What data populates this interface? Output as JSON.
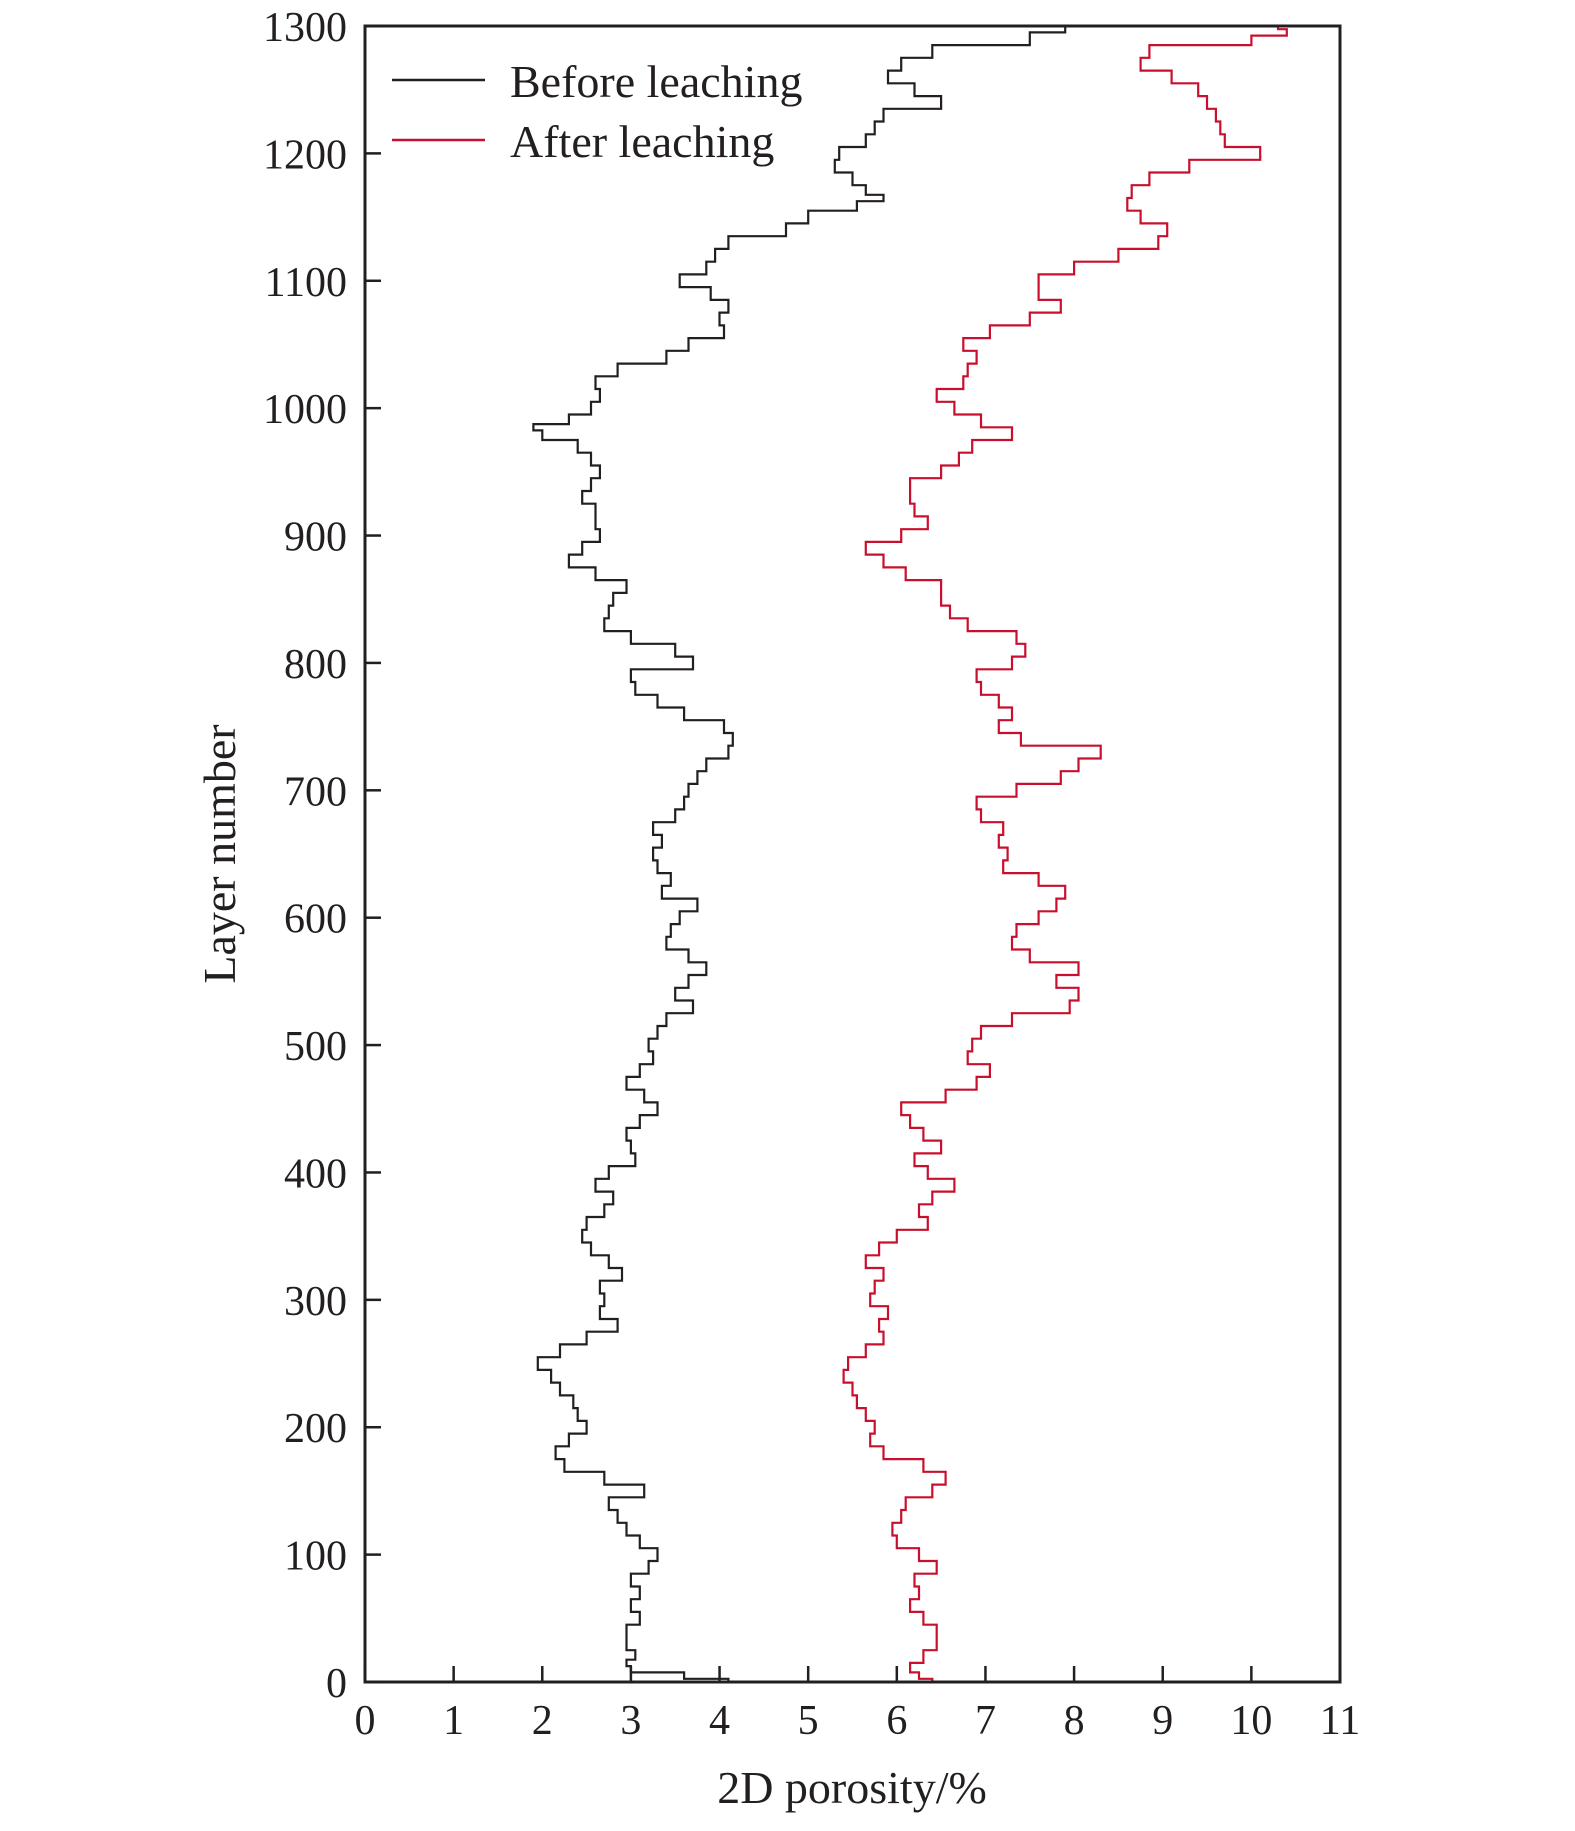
{
  "chart_data": {
    "type": "line",
    "title": "",
    "xlabel": "2D porosity/%",
    "ylabel": "Layer number",
    "xlim": [
      0,
      11
    ],
    "ylim": [
      0,
      1300
    ],
    "x_ticks": [
      "0",
      "1",
      "2",
      "3",
      "4",
      "5",
      "6",
      "7",
      "8",
      "9",
      "10",
      "11"
    ],
    "y_ticks": [
      "0",
      "100",
      "200",
      "300",
      "400",
      "500",
      "600",
      "700",
      "800",
      "900",
      "1000",
      "1100",
      "1200",
      "1300"
    ],
    "grid": false,
    "legend_position": "top-left",
    "series": [
      {
        "name": "Before leaching",
        "color": "#231f20",
        "layer": [
          0,
          5,
          10,
          15,
          20,
          30,
          40,
          50,
          60,
          70,
          80,
          90,
          100,
          110,
          120,
          130,
          140,
          150,
          160,
          170,
          180,
          190,
          200,
          210,
          220,
          230,
          240,
          250,
          260,
          270,
          280,
          290,
          300,
          310,
          320,
          330,
          340,
          350,
          360,
          370,
          380,
          390,
          400,
          410,
          420,
          430,
          440,
          450,
          460,
          470,
          480,
          490,
          500,
          510,
          520,
          530,
          540,
          550,
          560,
          570,
          580,
          590,
          600,
          610,
          620,
          630,
          640,
          650,
          660,
          670,
          680,
          690,
          700,
          710,
          720,
          730,
          740,
          750,
          760,
          770,
          780,
          790,
          800,
          810,
          820,
          830,
          840,
          850,
          860,
          870,
          880,
          890,
          900,
          910,
          920,
          930,
          940,
          950,
          960,
          970,
          980,
          985,
          990,
          1000,
          1010,
          1020,
          1030,
          1040,
          1050,
          1060,
          1070,
          1080,
          1090,
          1100,
          1110,
          1120,
          1130,
          1140,
          1150,
          1160,
          1165,
          1170,
          1180,
          1190,
          1200,
          1210,
          1220,
          1230,
          1240,
          1250,
          1260,
          1270,
          1280,
          1290,
          1300
        ],
        "values": [
          4.1,
          3.6,
          3.0,
          2.95,
          3.05,
          2.95,
          2.95,
          3.1,
          3.0,
          3.1,
          3.0,
          3.2,
          3.3,
          3.1,
          2.95,
          2.85,
          2.75,
          3.15,
          2.7,
          2.25,
          2.15,
          2.3,
          2.5,
          2.4,
          2.35,
          2.2,
          2.1,
          1.95,
          2.2,
          2.5,
          2.85,
          2.65,
          2.7,
          2.65,
          2.9,
          2.75,
          2.55,
          2.45,
          2.5,
          2.7,
          2.8,
          2.6,
          2.75,
          3.05,
          3.0,
          2.95,
          3.1,
          3.3,
          3.15,
          2.95,
          3.1,
          3.25,
          3.2,
          3.3,
          3.4,
          3.7,
          3.5,
          3.65,
          3.85,
          3.65,
          3.4,
          3.45,
          3.55,
          3.75,
          3.35,
          3.45,
          3.3,
          3.25,
          3.35,
          3.25,
          3.5,
          3.6,
          3.65,
          3.75,
          3.85,
          4.1,
          4.15,
          4.05,
          3.6,
          3.3,
          3.05,
          3.0,
          3.7,
          3.5,
          3.0,
          2.7,
          2.75,
          2.8,
          2.95,
          2.6,
          2.3,
          2.45,
          2.65,
          2.6,
          2.6,
          2.45,
          2.55,
          2.65,
          2.55,
          2.4,
          2.0,
          1.9,
          2.3,
          2.55,
          2.65,
          2.6,
          2.85,
          3.4,
          3.65,
          4.05,
          4.0,
          4.1,
          3.9,
          3.55,
          3.85,
          3.95,
          4.1,
          4.75,
          5.0,
          5.55,
          5.85,
          5.65,
          5.5,
          5.3,
          5.35,
          5.65,
          5.75,
          5.85,
          6.5,
          6.2,
          5.9,
          6.05,
          6.4,
          7.5,
          7.9
        ]
      },
      {
        "name": "After leaching",
        "color": "#c8102e",
        "layer": [
          0,
          5,
          10,
          20,
          30,
          40,
          50,
          60,
          70,
          80,
          90,
          100,
          110,
          120,
          130,
          140,
          150,
          160,
          170,
          180,
          190,
          200,
          210,
          220,
          230,
          240,
          250,
          260,
          270,
          280,
          290,
          300,
          310,
          320,
          330,
          340,
          350,
          360,
          370,
          380,
          390,
          400,
          410,
          420,
          430,
          440,
          450,
          460,
          470,
          480,
          490,
          500,
          510,
          520,
          530,
          540,
          550,
          560,
          570,
          580,
          590,
          600,
          610,
          620,
          630,
          640,
          650,
          660,
          670,
          680,
          690,
          700,
          710,
          720,
          730,
          740,
          750,
          760,
          770,
          780,
          790,
          800,
          810,
          820,
          830,
          840,
          850,
          860,
          870,
          880,
          890,
          900,
          910,
          920,
          930,
          940,
          950,
          960,
          970,
          980,
          990,
          1000,
          1010,
          1020,
          1030,
          1040,
          1050,
          1060,
          1070,
          1080,
          1090,
          1100,
          1110,
          1120,
          1130,
          1140,
          1150,
          1160,
          1170,
          1180,
          1190,
          1200,
          1210,
          1220,
          1230,
          1240,
          1250,
          1260,
          1270,
          1280,
          1290,
          1295,
          1300
        ],
        "values": [
          6.4,
          6.25,
          6.15,
          6.3,
          6.45,
          6.45,
          6.3,
          6.15,
          6.25,
          6.2,
          6.45,
          6.25,
          6.0,
          5.95,
          6.05,
          6.1,
          6.4,
          6.55,
          6.3,
          5.85,
          5.7,
          5.75,
          5.65,
          5.55,
          5.5,
          5.4,
          5.45,
          5.65,
          5.85,
          5.8,
          5.9,
          5.7,
          5.75,
          5.85,
          5.65,
          5.8,
          6.0,
          6.35,
          6.25,
          6.4,
          6.65,
          6.35,
          6.2,
          6.5,
          6.3,
          6.15,
          6.05,
          6.55,
          6.9,
          7.05,
          6.8,
          6.85,
          6.95,
          7.3,
          7.95,
          8.05,
          7.8,
          8.05,
          7.5,
          7.3,
          7.35,
          7.6,
          7.8,
          7.9,
          7.6,
          7.2,
          7.25,
          7.15,
          7.2,
          6.95,
          6.9,
          7.35,
          7.85,
          8.05,
          8.3,
          7.4,
          7.15,
          7.3,
          7.15,
          6.95,
          6.9,
          7.3,
          7.45,
          7.35,
          6.8,
          6.6,
          6.5,
          6.5,
          6.1,
          5.85,
          5.65,
          6.05,
          6.35,
          6.2,
          6.15,
          6.15,
          6.5,
          6.7,
          6.85,
          7.3,
          6.95,
          6.65,
          6.45,
          6.75,
          6.8,
          6.9,
          6.75,
          7.05,
          7.5,
          7.85,
          7.6,
          7.6,
          8.0,
          8.5,
          8.95,
          9.05,
          8.75,
          8.6,
          8.65,
          8.85,
          9.3,
          10.1,
          9.7,
          9.65,
          9.6,
          9.5,
          9.4,
          9.1,
          8.75,
          8.85,
          10.0,
          10.4,
          10.3
        ]
      }
    ]
  }
}
